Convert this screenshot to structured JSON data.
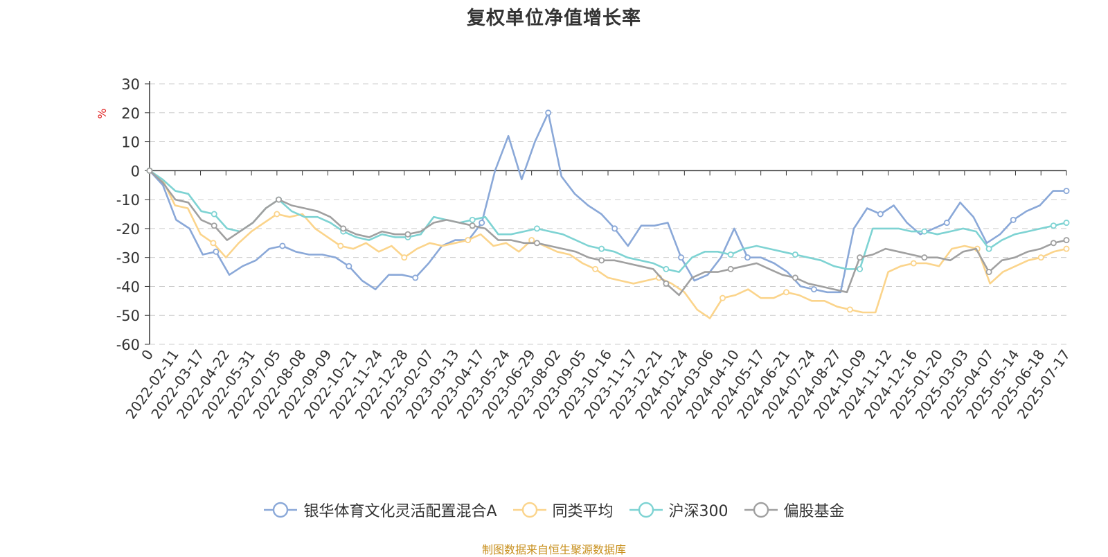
{
  "chart_data": {
    "type": "line",
    "title": "复权单位净值增长率",
    "ylabel": "%",
    "ylim": [
      -60,
      30
    ],
    "yticks": [
      30,
      20,
      10,
      0,
      -10,
      -20,
      -30,
      -40,
      -50,
      -60
    ],
    "grid": true,
    "legend_position": "bottom",
    "x_ticks": [
      "0",
      "2022-02-11",
      "2022-03-17",
      "2022-04-22",
      "2022-05-31",
      "2022-07-05",
      "2022-08-08",
      "2022-09-09",
      "2022-10-21",
      "2022-11-24",
      "2022-12-28",
      "2023-02-07",
      "2023-03-13",
      "2023-04-17",
      "2023-05-24",
      "2023-06-29",
      "2023-08-02",
      "2023-09-05",
      "2023-10-16",
      "2023-11-17",
      "2023-12-21",
      "2024-01-24",
      "2024-03-06",
      "2024-04-10",
      "2024-05-17",
      "2024-06-21",
      "2024-07-24",
      "2024-08-27",
      "2024-10-09",
      "2024-11-12",
      "2024-12-16",
      "2025-01-20",
      "2025-03-03",
      "2025-04-07",
      "2025-05-14",
      "2025-06-18",
      "2025-07-17"
    ],
    "series": [
      {
        "name": "银华体育文化灵活配置混合A",
        "color": "#8aa8d8",
        "values": [
          0,
          -5,
          -17,
          -20,
          -29,
          -28,
          -36,
          -33,
          -31,
          -27,
          -26,
          -28,
          -29,
          -29,
          -30,
          -33,
          -38,
          -41,
          -36,
          -36,
          -37,
          -32,
          -26,
          -24,
          -24,
          -18,
          0,
          12,
          -3,
          10,
          20,
          -2,
          -8,
          -12,
          -15,
          -20,
          -26,
          -19,
          -19,
          -18,
          -30,
          -38,
          -36,
          -30,
          -20,
          -30,
          -30,
          -32,
          -35,
          -40,
          -41,
          -42,
          -42,
          -20,
          -13,
          -15,
          -12,
          -18,
          -22,
          -20,
          -18,
          -11,
          -16,
          -25,
          -22,
          -17,
          -14,
          -12,
          -7,
          -7
        ]
      },
      {
        "name": "同类平均",
        "color": "#fbd48b",
        "values": [
          0,
          -3,
          -12,
          -13,
          -22,
          -25,
          -30,
          -25,
          -21,
          -18,
          -15,
          -16,
          -15,
          -20,
          -23,
          -26,
          -27,
          -25,
          -28,
          -26,
          -30,
          -27,
          -25,
          -26,
          -25,
          -24,
          -22,
          -26,
          -25,
          -28,
          -24,
          -26,
          -28,
          -29,
          -32,
          -34,
          -37,
          -38,
          -39,
          -38,
          -37,
          -39,
          -42,
          -48,
          -51,
          -44,
          -43,
          -41,
          -44,
          -44,
          -42,
          -43,
          -45,
          -45,
          -47,
          -48,
          -49,
          -49,
          -35,
          -33,
          -32,
          -32,
          -33,
          -27,
          -26,
          -27,
          -39,
          -35,
          -33,
          -31,
          -30,
          -28,
          -27
        ]
      },
      {
        "name": "沪深300",
        "color": "#7ed3d3",
        "values": [
          0,
          -3,
          -7,
          -8,
          -14,
          -15,
          -20,
          -21,
          -18,
          -13,
          -10,
          -14,
          -16,
          -16,
          -18,
          -21,
          -23,
          -24,
          -22,
          -23,
          -23,
          -22,
          -16,
          -17,
          -18,
          -17,
          -16,
          -22,
          -22,
          -21,
          -20,
          -21,
          -22,
          -24,
          -26,
          -27,
          -28,
          -30,
          -31,
          -32,
          -34,
          -35,
          -30,
          -28,
          -28,
          -29,
          -27,
          -26,
          -27,
          -28,
          -29,
          -30,
          -31,
          -33,
          -34,
          -34,
          -20,
          -20,
          -20,
          -21,
          -21,
          -22,
          -21,
          -20,
          -21,
          -27,
          -24,
          -22,
          -21,
          -20,
          -19,
          -18
        ]
      },
      {
        "name": "偏股基金",
        "color": "#a0a0a0",
        "values": [
          0,
          -4,
          -10,
          -11,
          -17,
          -19,
          -24,
          -21,
          -18,
          -13,
          -10,
          -12,
          -13,
          -14,
          -16,
          -20,
          -22,
          -23,
          -21,
          -22,
          -22,
          -21,
          -18,
          -17,
          -18,
          -19,
          -20,
          -24,
          -24,
          -25,
          -25,
          -26,
          -27,
          -28,
          -30,
          -31,
          -31,
          -32,
          -33,
          -34,
          -39,
          -43,
          -37,
          -35,
          -35,
          -34,
          -33,
          -32,
          -34,
          -36,
          -37,
          -39,
          -40,
          -41,
          -42,
          -30,
          -29,
          -27,
          -28,
          -29,
          -30,
          -30,
          -31,
          -28,
          -27,
          -35,
          -31,
          -30,
          -28,
          -27,
          -25,
          -24
        ]
      }
    ]
  },
  "footer": {
    "source": "制图数据来自恒生聚源数据库"
  }
}
